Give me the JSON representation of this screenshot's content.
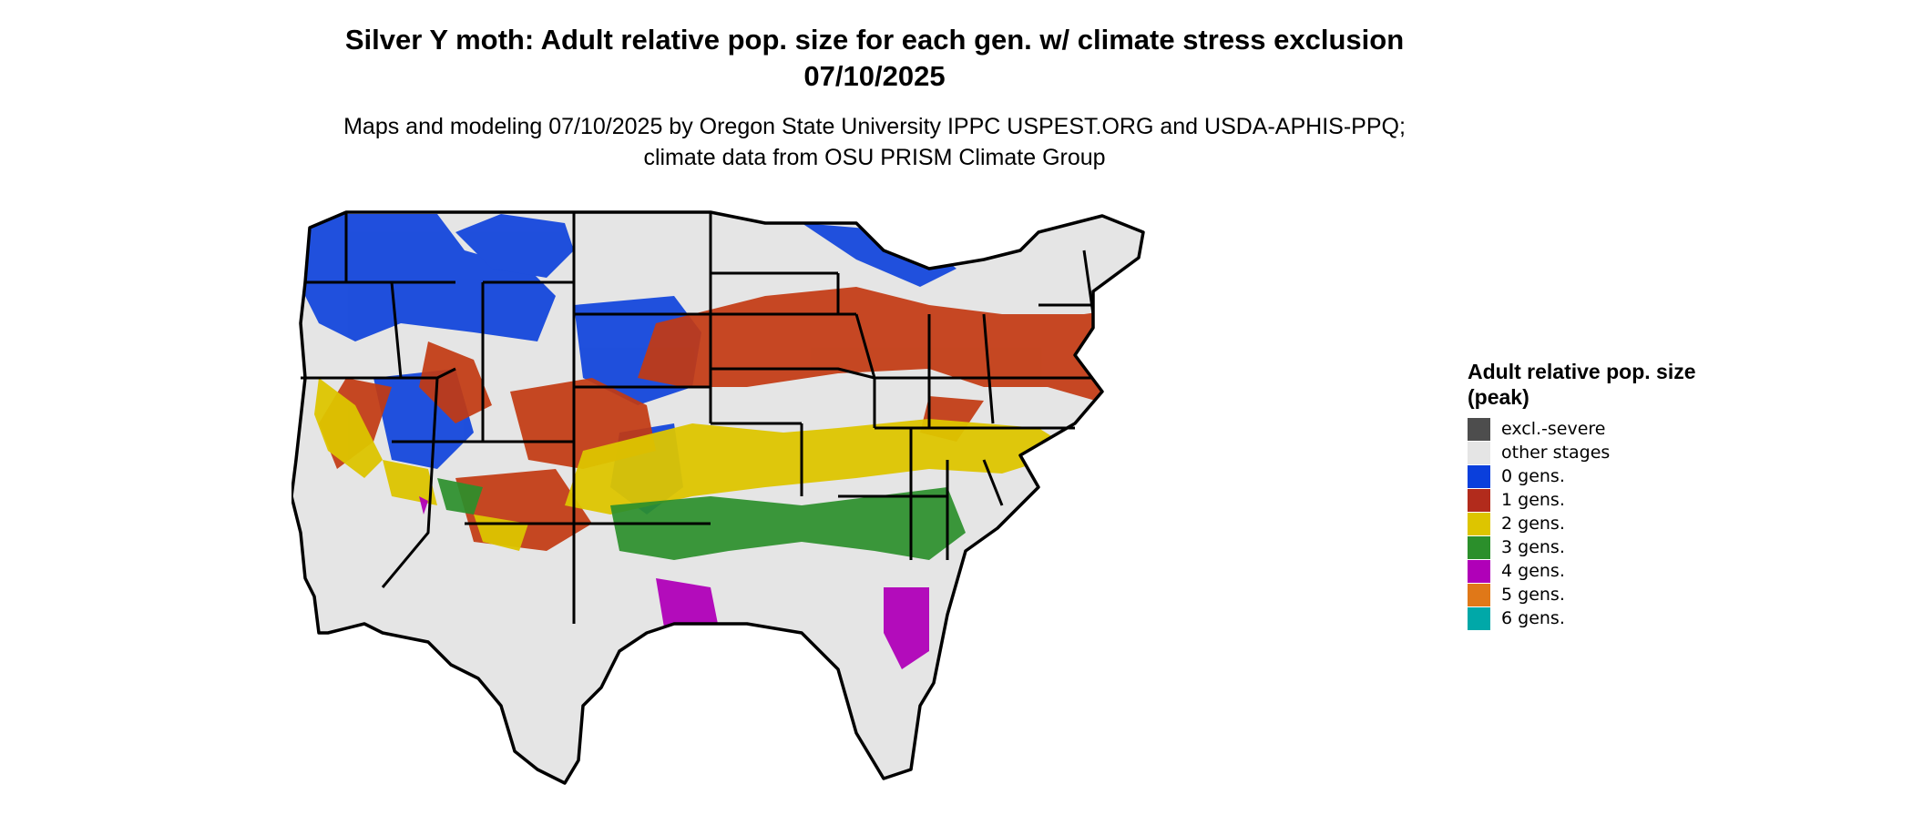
{
  "map": {
    "title": "Silver Y moth: Adult relative pop. size for each gen. w/ climate stress exclusion 07/10/2025",
    "subtitle": "Maps and modeling 07/10/2025 by Oregon State University IPPC USPEST.ORG and USDA-APHIS-PPQ; climate data from OSU PRISM Climate Group",
    "background_fill": "#e5e5e5",
    "border_color": "#000000"
  },
  "legend": {
    "title": "Adult relative pop. size (peak)",
    "items": [
      {
        "label": "excl.-severe",
        "color": "#4d4d4d"
      },
      {
        "label": "other stages",
        "color": "#e5e5e5"
      },
      {
        "label": "0 gens.",
        "color": "#0a3fdc"
      },
      {
        "label": "1 gens.",
        "color": "#b22b1c"
      },
      {
        "label": "2 gens.",
        "color": "#ddc500"
      },
      {
        "label": "3 gens.",
        "color": "#2b8f2b"
      },
      {
        "label": "4 gens.",
        "color": "#b000b8"
      },
      {
        "label": "5 gens.",
        "color": "#e07818"
      },
      {
        "label": "6 gens.",
        "color": "#00a8a8"
      }
    ]
  }
}
